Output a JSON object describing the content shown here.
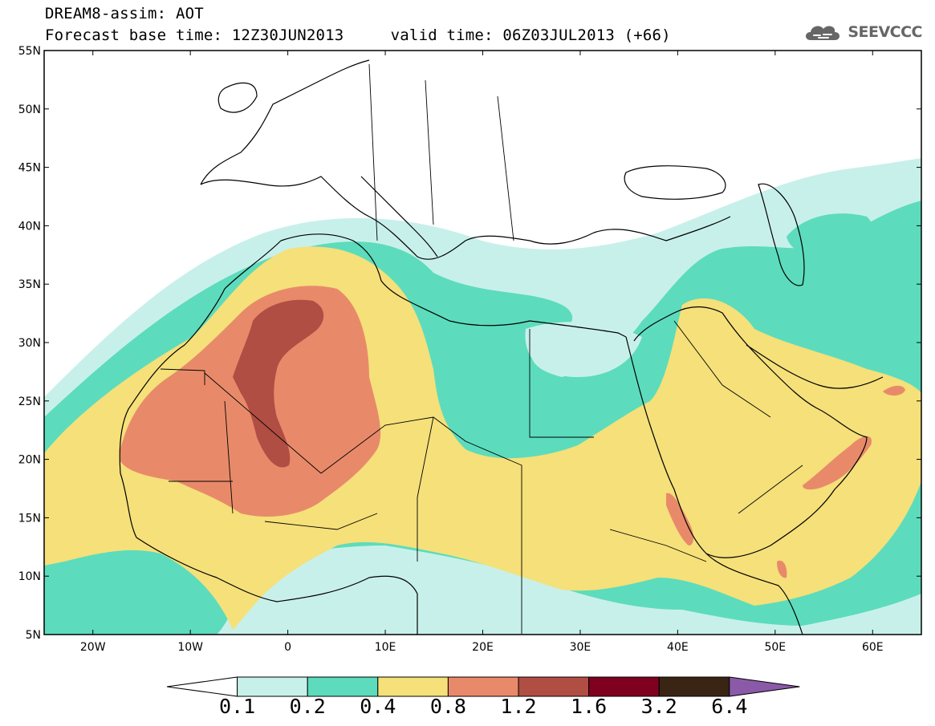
{
  "header": {
    "line1": "DREAM8-assim: AOT",
    "line2_base": "Forecast base time: 12Z30JUN2013",
    "line2_valid": "valid time: 06Z03JUL2013 (+66)"
  },
  "logo": {
    "text": "SEEVCCC",
    "icon": "cloud-icon"
  },
  "map": {
    "lon_range": [
      -25,
      65
    ],
    "lat_range": [
      5,
      55
    ],
    "lat_ticks": [
      "5N",
      "10N",
      "15N",
      "20N",
      "25N",
      "30N",
      "35N",
      "40N",
      "45N",
      "50N",
      "55N"
    ],
    "lon_ticks": [
      "20W",
      "10W",
      "0",
      "10E",
      "20E",
      "30E",
      "40E",
      "50E",
      "60E"
    ]
  },
  "colorbar": {
    "levels": [
      "0.1",
      "0.2",
      "0.4",
      "0.8",
      "1.2",
      "1.6",
      "3.2",
      "6.4"
    ],
    "colors": [
      "#ffffff",
      "#c8f0ea",
      "#5cdcbc",
      "#f5e07a",
      "#e88a6a",
      "#b04e44",
      "#800020",
      "#3a2414",
      "#8a5aa8"
    ]
  }
}
